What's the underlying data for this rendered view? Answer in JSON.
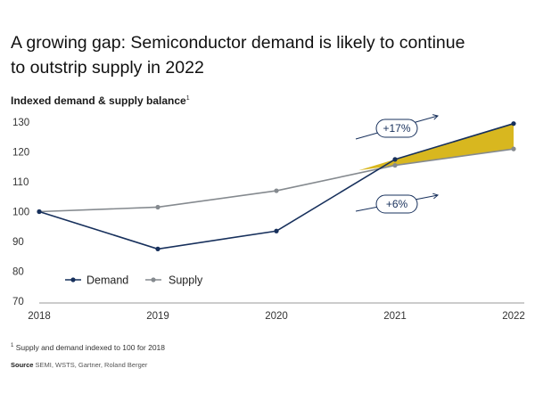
{
  "header": {
    "title_line1": "A growing gap: Semiconductor demand is likely to continue",
    "title_line2": "to outstrip supply in 2022",
    "subtitle": "Indexed demand & supply balance",
    "subtitle_marker": "1"
  },
  "chart_data": {
    "type": "line",
    "title": "A growing gap: Semiconductor demand is likely to continue to outstrip supply in 2022",
    "ylabel": "Indexed demand & supply balance",
    "xlabel": "",
    "categories": [
      "2018",
      "2019",
      "2020",
      "2021",
      "2022"
    ],
    "yticks": [
      70,
      80,
      90,
      100,
      110,
      120,
      130
    ],
    "ylim": [
      70,
      130
    ],
    "grid": false,
    "legend_position": "bottom-left",
    "series": [
      {
        "name": "Demand",
        "color": "#17305c",
        "values": [
          100,
          87.5,
          93.5,
          117.5,
          129.5
        ]
      },
      {
        "name": "Supply",
        "color": "#858a8f",
        "values": [
          100,
          101.5,
          107,
          115.5,
          121
        ]
      }
    ],
    "gap_fill_color": "#d8b71f",
    "annotations": [
      {
        "label": "+17%",
        "refers_to": "Demand"
      },
      {
        "label": "+6%",
        "refers_to": "Supply"
      }
    ]
  },
  "footnote": {
    "marker": "1",
    "text": "Supply and demand indexed to 100 for 2018"
  },
  "source": {
    "label": "Source",
    "text": "SEMI, WSTS, Gartner, Roland Berger"
  }
}
